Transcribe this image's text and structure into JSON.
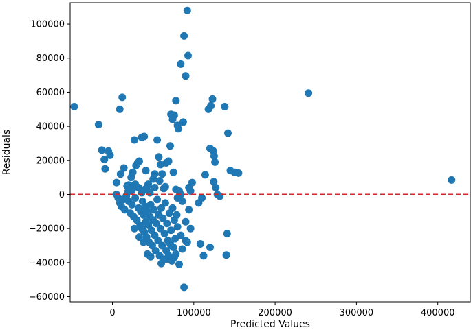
{
  "chart_data": {
    "type": "scatter",
    "title": "",
    "xlabel": "Predicted Values",
    "ylabel": "Residuals",
    "xlim": [
      -52000,
      440000
    ],
    "ylim": [
      -63000,
      112500
    ],
    "xticks": [
      0,
      100000,
      200000,
      300000,
      400000
    ],
    "xtick_labels": [
      "0",
      "100000",
      "200000",
      "300000",
      "400000"
    ],
    "yticks": [
      -60000,
      -40000,
      -20000,
      0,
      20000,
      40000,
      60000,
      80000,
      100000
    ],
    "ytick_labels": [
      "−60000",
      "−40000",
      "−20000",
      "0",
      "20000",
      "40000",
      "60000",
      "80000",
      "100000"
    ],
    "grid": false,
    "point_color": "#1f77b4",
    "reference_line": {
      "y": 0,
      "style": "dashed",
      "color": "#d62728"
    },
    "series": [
      {
        "points": [
          [
            -47000,
            51500
          ],
          [
            -17000,
            41000
          ],
          [
            -13000,
            26000
          ],
          [
            -10000,
            20500
          ],
          [
            -9000,
            15000
          ],
          [
            -5000,
            25500
          ],
          [
            -3000,
            23000
          ],
          [
            5000,
            7000
          ],
          [
            9000,
            50000
          ],
          [
            12000,
            57000
          ],
          [
            10000,
            12000
          ],
          [
            14000,
            15500
          ],
          [
            18000,
            5000
          ],
          [
            21000,
            2000
          ],
          [
            23000,
            10000
          ],
          [
            25000,
            13000
          ],
          [
            27000,
            32000
          ],
          [
            29000,
            17000
          ],
          [
            31000,
            18500
          ],
          [
            33000,
            19500
          ],
          [
            36000,
            33500
          ],
          [
            39000,
            34000
          ],
          [
            41000,
            14000
          ],
          [
            43000,
            5000
          ],
          [
            46000,
            1000
          ],
          [
            50000,
            9000
          ],
          [
            52000,
            12000
          ],
          [
            55000,
            32000
          ],
          [
            57000,
            22000
          ],
          [
            59000,
            17500
          ],
          [
            61000,
            12000
          ],
          [
            63000,
            3500
          ],
          [
            66000,
            18500
          ],
          [
            69000,
            19500
          ],
          [
            71000,
            28500
          ],
          [
            72000,
            47000
          ],
          [
            74000,
            44000
          ],
          [
            75000,
            13000
          ],
          [
            76000,
            46500
          ],
          [
            78000,
            55000
          ],
          [
            80000,
            40500
          ],
          [
            81000,
            38500
          ],
          [
            84000,
            76500
          ],
          [
            87000,
            42500
          ],
          [
            88000,
            93000
          ],
          [
            90000,
            69500
          ],
          [
            92000,
            108000
          ],
          [
            93000,
            81500
          ],
          [
            94000,
            4000
          ],
          [
            96000,
            2000
          ],
          [
            98000,
            7000
          ],
          [
            106000,
            -5000
          ],
          [
            110000,
            -2000
          ],
          [
            114000,
            11500
          ],
          [
            118000,
            50000
          ],
          [
            120000,
            27000
          ],
          [
            121000,
            52000
          ],
          [
            123000,
            56000
          ],
          [
            124000,
            25500
          ],
          [
            125000,
            22500
          ],
          [
            126000,
            19000
          ],
          [
            124500,
            7500
          ],
          [
            127000,
            4000
          ],
          [
            129000,
            0
          ],
          [
            132000,
            -1000
          ],
          [
            138000,
            51500
          ],
          [
            142000,
            36000
          ],
          [
            145000,
            14000
          ],
          [
            150000,
            13000
          ],
          [
            155000,
            12500
          ],
          [
            141000,
            -23000
          ],
          [
            140000,
            -35500
          ],
          [
            120000,
            -31000
          ],
          [
            112000,
            -36000
          ],
          [
            108000,
            -29000
          ],
          [
            241000,
            59500
          ],
          [
            417000,
            8500
          ],
          [
            5000,
            0
          ],
          [
            7000,
            -2000
          ],
          [
            9000,
            -5000
          ],
          [
            11000,
            -7000
          ],
          [
            13000,
            -3000
          ],
          [
            15000,
            -9000
          ],
          [
            17000,
            -1000
          ],
          [
            19000,
            1500
          ],
          [
            20000,
            -4000
          ],
          [
            22000,
            -11000
          ],
          [
            24000,
            -6000
          ],
          [
            26000,
            -13000
          ],
          [
            28000,
            -2000
          ],
          [
            30000,
            -15000
          ],
          [
            32000,
            -8000
          ],
          [
            34000,
            -18000
          ],
          [
            35000,
            -10000
          ],
          [
            36000,
            -20000
          ],
          [
            37000,
            -4000
          ],
          [
            38000,
            -12000
          ],
          [
            39000,
            -22000
          ],
          [
            40000,
            -7000
          ],
          [
            41000,
            -16000
          ],
          [
            42000,
            -25000
          ],
          [
            43000,
            -10000
          ],
          [
            44000,
            -18000
          ],
          [
            45000,
            -28000
          ],
          [
            46000,
            -13000
          ],
          [
            47000,
            -6000
          ],
          [
            48000,
            -21000
          ],
          [
            49000,
            -30000
          ],
          [
            50000,
            -15000
          ],
          [
            51000,
            -9000
          ],
          [
            52000,
            -24000
          ],
          [
            53000,
            -33000
          ],
          [
            54000,
            -17000
          ],
          [
            55000,
            -3000
          ],
          [
            56000,
            -27000
          ],
          [
            57000,
            -12000
          ],
          [
            58000,
            -36000
          ],
          [
            59000,
            -20000
          ],
          [
            60000,
            -8000
          ],
          [
            61000,
            -30000
          ],
          [
            62000,
            -14000
          ],
          [
            63000,
            -38000
          ],
          [
            64000,
            -23000
          ],
          [
            65000,
            -5000
          ],
          [
            66000,
            -33000
          ],
          [
            67000,
            -17000
          ],
          [
            68000,
            -27000
          ],
          [
            69000,
            -36000
          ],
          [
            70000,
            -11000
          ],
          [
            71000,
            -29000
          ],
          [
            72000,
            -21000
          ],
          [
            73000,
            -39000
          ],
          [
            74000,
            -8000
          ],
          [
            75000,
            -31000
          ],
          [
            76000,
            -15000
          ],
          [
            77000,
            -26000
          ],
          [
            78000,
            -35000
          ],
          [
            79000,
            -12000
          ],
          [
            80000,
            -19000
          ],
          [
            82000,
            -41000
          ],
          [
            84000,
            -24000
          ],
          [
            86000,
            -32000
          ],
          [
            88000,
            -54500
          ],
          [
            90000,
            -16000
          ],
          [
            92000,
            -28000
          ],
          [
            94000,
            -9000
          ],
          [
            96000,
            -20000
          ],
          [
            86000,
            -4000
          ],
          [
            84000,
            0
          ],
          [
            82000,
            2000
          ],
          [
            80000,
            -2000
          ],
          [
            78000,
            3000
          ],
          [
            65000,
            4500
          ],
          [
            58000,
            8000
          ],
          [
            52000,
            4000
          ],
          [
            44000,
            6000
          ],
          [
            40000,
            3000
          ],
          [
            36000,
            1000
          ],
          [
            32000,
            4000
          ],
          [
            28000,
            6000
          ],
          [
            24000,
            2500
          ],
          [
            20000,
            5500
          ],
          [
            27000,
            -20000
          ],
          [
            33000,
            -25000
          ],
          [
            38000,
            -28000
          ],
          [
            43000,
            -35000
          ],
          [
            47000,
            -36500
          ],
          [
            60000,
            -40500
          ],
          [
            66000,
            -38000
          ],
          [
            72000,
            -30000
          ],
          [
            76000,
            -37000
          ],
          [
            90000,
            -27000
          ]
        ]
      }
    ]
  }
}
